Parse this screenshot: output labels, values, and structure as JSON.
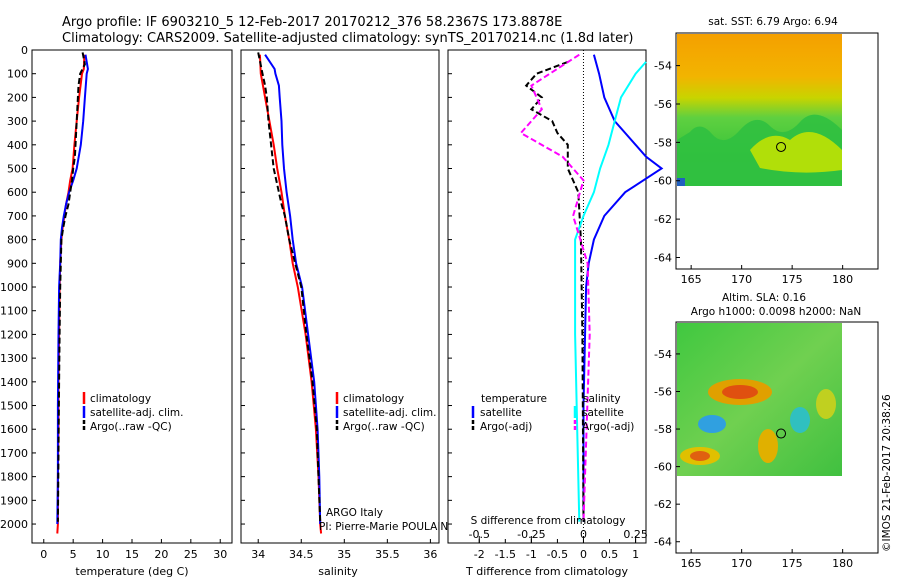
{
  "title": {
    "line1": "Argo profile: IF 6903210_5 12-Feb-2017 20170212_376 58.2367S 173.8878E",
    "line2": "Climatology: CARS2009. Satellite-adjusted climatology: synTS_20170214.nc (1.8d later)"
  },
  "credit": "©IMOS 21-Feb-2017 20:38:26",
  "colors": {
    "climatology": "#ff0000",
    "satellite": "#0000ff",
    "argo": "#000000",
    "salinity_satellite": "#00ffff",
    "salinity_argo": "#ff00ff"
  },
  "depth_ticks": [
    "0",
    "100",
    "200",
    "300",
    "400",
    "500",
    "600",
    "700",
    "800",
    "900",
    "1000",
    "1100",
    "1200",
    "1300",
    "1400",
    "1500",
    "1600",
    "1700",
    "1800",
    "1900",
    "2000"
  ],
  "chart_data": [
    {
      "type": "line",
      "panel": "temperature",
      "xlabel": "temperature (deg C)",
      "xlim": [
        -2,
        32
      ],
      "ylim": [
        2080,
        0
      ],
      "xticks": [
        "0",
        "5",
        "10",
        "15",
        "20",
        "25",
        "30"
      ],
      "legend": [
        "climatology",
        "satellite-adj. clim.",
        "Argo(..raw -QC)"
      ],
      "series": [
        {
          "name": "climatology",
          "x": [
            6.9,
            6.8,
            6.5,
            6.0,
            5.6,
            5.2,
            4.9,
            4.5,
            4.2,
            3.8,
            3.5,
            3.2,
            3.0,
            2.8,
            2.7,
            2.6,
            2.5,
            2.5,
            2.4,
            2.4,
            2.4,
            2.3
          ],
          "y": [
            20,
            80,
            100,
            200,
            300,
            400,
            500,
            550,
            600,
            650,
            700,
            750,
            800,
            900,
            1000,
            1200,
            1400,
            1600,
            1800,
            1900,
            2000,
            2040
          ]
        },
        {
          "name": "satellite-adj. clim.",
          "x": [
            7.1,
            7.5,
            7.3,
            7.0,
            6.7,
            6.3,
            5.6,
            5.0,
            4.3,
            3.8,
            3.4,
            3.1,
            2.9,
            2.8,
            2.6,
            2.5,
            2.4,
            2.4,
            2.3
          ],
          "y": [
            20,
            80,
            100,
            200,
            300,
            400,
            500,
            550,
            600,
            650,
            700,
            750,
            800,
            900,
            1000,
            1200,
            1500,
            1800,
            2000
          ]
        },
        {
          "name": "Argo(..raw -QC)",
          "x": [
            6.6,
            7.0,
            6.2,
            5.9,
            5.7,
            5.5,
            5.3,
            5.0,
            4.8,
            4.5,
            4.2,
            3.7,
            3.3,
            3.0,
            2.9,
            2.8,
            2.7,
            2.6,
            2.5,
            2.4
          ],
          "y": [
            10,
            60,
            100,
            150,
            250,
            350,
            450,
            500,
            550,
            600,
            650,
            700,
            750,
            800,
            900,
            1000,
            1200,
            1400,
            1700,
            1990
          ]
        }
      ]
    },
    {
      "type": "line",
      "panel": "salinity",
      "xlabel": "salinity",
      "xlim": [
        33.8,
        36.1
      ],
      "ylim": [
        2080,
        0
      ],
      "xticks": [
        "34",
        "34.5",
        "35",
        "35.5",
        "36"
      ],
      "legend": [
        "climatology",
        "satellite-adj. clim.",
        "Argo(..raw -QC)"
      ],
      "annotation_lines": [
        "ARGO Italy",
        "PI: Pierre-Marie POULAIN"
      ],
      "series": [
        {
          "name": "climatology",
          "x": [
            34.02,
            34.03,
            34.08,
            34.13,
            34.18,
            34.22,
            34.27,
            34.31,
            34.36,
            34.4,
            34.46,
            34.55,
            34.62,
            34.67,
            34.7,
            34.72,
            34.73
          ],
          "y": [
            20,
            100,
            200,
            300,
            400,
            500,
            600,
            700,
            800,
            900,
            1000,
            1200,
            1400,
            1600,
            1800,
            2000,
            2040
          ]
        },
        {
          "name": "satellite-adj. clim.",
          "x": [
            34.08,
            34.19,
            34.2,
            34.24,
            34.25,
            34.27,
            34.28,
            34.3,
            34.33,
            34.37,
            34.4,
            34.44,
            34.51,
            34.58,
            34.65,
            34.69,
            34.71,
            34.72
          ],
          "y": [
            20,
            80,
            100,
            150,
            200,
            300,
            400,
            500,
            600,
            700,
            800,
            900,
            1000,
            1200,
            1400,
            1600,
            1800,
            2000
          ]
        },
        {
          "name": "Argo(..raw -QC)",
          "x": [
            34.0,
            34.05,
            34.08,
            34.1,
            34.12,
            34.15,
            34.18,
            34.21,
            34.24,
            34.27,
            34.31,
            34.36,
            34.43,
            34.5,
            34.56,
            34.63,
            34.68,
            34.7,
            34.72
          ],
          "y": [
            10,
            100,
            150,
            200,
            300,
            400,
            500,
            550,
            600,
            650,
            700,
            800,
            900,
            1000,
            1200,
            1400,
            1600,
            1800,
            1990
          ]
        }
      ]
    },
    {
      "type": "line",
      "panel": "difference",
      "xlabel_top": "S difference from climatology",
      "xlabel": "T difference from climatology",
      "xlim": [
        -2.6,
        1.2
      ],
      "ylim": [
        2080,
        0
      ],
      "xticks": [
        "-2",
        "-1.5",
        "-1",
        "-0.5",
        "0",
        "0.5",
        "1"
      ],
      "sticks": [
        "-0.5",
        "-0.25",
        "0",
        "0.25",
        "0.5"
      ],
      "legend": {
        "temperature": [
          "temperature",
          "satellite",
          "Argo(-adj)"
        ],
        "salinity": [
          "salinity",
          "satellite",
          "Argo(-adj)"
        ]
      },
      "series": [
        {
          "name": "temperature satellite",
          "x": [
            0.2,
            0.3,
            0.4,
            0.6,
            0.8,
            1.0,
            1.2,
            1.5,
            0.8,
            0.4,
            0.2,
            0.1,
            0.05,
            0.0,
            0.0
          ],
          "y": [
            20,
            100,
            200,
            300,
            350,
            400,
            450,
            500,
            600,
            700,
            800,
            900,
            1000,
            1500,
            1990
          ]
        },
        {
          "name": "temperature Argo(-adj)",
          "x": [
            -0.3,
            -0.9,
            -1.1,
            -0.8,
            -1.0,
            -0.6,
            -0.5,
            -0.3,
            -0.3,
            -0.1,
            -0.05,
            -0.02,
            0.0
          ],
          "y": [
            50,
            100,
            150,
            200,
            250,
            300,
            350,
            400,
            500,
            600,
            800,
            1200,
            1990
          ]
        },
        {
          "name": "salinity satellite",
          "x": [
            0.3,
            0.25,
            0.18,
            0.15,
            0.12,
            0.08,
            0.05,
            0.0,
            -0.04,
            -0.04,
            -0.03,
            -0.02
          ],
          "y": [
            50,
            100,
            200,
            300,
            400,
            500,
            600,
            700,
            800,
            1200,
            1600,
            1990
          ]
        },
        {
          "name": "salinity Argo(-adj)",
          "x": [
            -0.02,
            -0.25,
            -0.2,
            -0.3,
            -0.1,
            0.0,
            -0.05,
            0.02,
            0.03,
            0.0
          ],
          "y": [
            20,
            150,
            250,
            350,
            450,
            550,
            700,
            900,
            1200,
            1990
          ]
        }
      ]
    }
  ],
  "maps": [
    {
      "title": "sat. SST: 6.79 Argo: 6.94",
      "xticks": [
        "165",
        "170",
        "175",
        "180"
      ],
      "yticks": [
        "-54",
        "-56",
        "-58",
        "-60",
        "-62",
        "-64"
      ],
      "marker": {
        "lon": 173.9,
        "lat": -58.24
      }
    },
    {
      "title_line1": "Altim. SLA: 0.16",
      "title_line2": "Argo h1000: 0.0098 h2000: NaN",
      "xticks": [
        "165",
        "170",
        "175",
        "180"
      ],
      "yticks": [
        "-54",
        "-56",
        "-58",
        "-60",
        "-62",
        "-64"
      ],
      "marker": {
        "lon": 173.9,
        "lat": -58.24
      }
    }
  ]
}
